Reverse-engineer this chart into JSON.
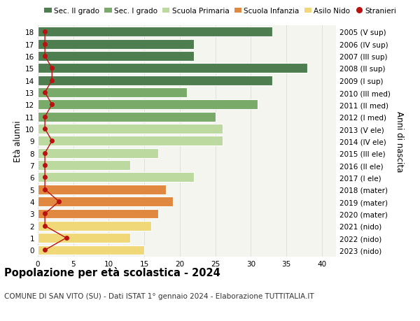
{
  "ages": [
    18,
    17,
    16,
    15,
    14,
    13,
    12,
    11,
    10,
    9,
    8,
    7,
    6,
    5,
    4,
    3,
    2,
    1,
    0
  ],
  "values": [
    33,
    22,
    22,
    38,
    33,
    21,
    31,
    25,
    26,
    26,
    17,
    13,
    22,
    18,
    19,
    17,
    16,
    13,
    15
  ],
  "stranieri": [
    1,
    1,
    1,
    2,
    2,
    1,
    2,
    1,
    1,
    2,
    1,
    1,
    1,
    1,
    3,
    1,
    1,
    4,
    1
  ],
  "right_labels": [
    "2005 (V sup)",
    "2006 (IV sup)",
    "2007 (III sup)",
    "2008 (II sup)",
    "2009 (I sup)",
    "2010 (III med)",
    "2011 (II med)",
    "2012 (I med)",
    "2013 (V ele)",
    "2014 (IV ele)",
    "2015 (III ele)",
    "2016 (II ele)",
    "2017 (I ele)",
    "2018 (mater)",
    "2019 (mater)",
    "2020 (mater)",
    "2021 (nido)",
    "2022 (nido)",
    "2023 (nido)"
  ],
  "bar_colors": [
    "#4e7e50",
    "#4e7e50",
    "#4e7e50",
    "#4e7e50",
    "#4e7e50",
    "#7aaa6a",
    "#7aaa6a",
    "#7aaa6a",
    "#bcd9a0",
    "#bcd9a0",
    "#bcd9a0",
    "#bcd9a0",
    "#bcd9a0",
    "#e08840",
    "#e08840",
    "#e08840",
    "#f0d878",
    "#f0d878",
    "#f0d878"
  ],
  "legend_colors": [
    "#4e7e50",
    "#7aaa6a",
    "#bcd9a0",
    "#e08840",
    "#f0d878",
    "#cc1111"
  ],
  "legend_labels": [
    "Sec. II grado",
    "Sec. I grado",
    "Scuola Primaria",
    "Scuola Infanzia",
    "Asilo Nido",
    "Stranieri"
  ],
  "ylabel": "Età alunni",
  "right_ylabel": "Anni di nascita",
  "title": "Popolazione per età scolastica - 2024",
  "subtitle": "COMUNE DI SAN VITO (SU) - Dati ISTAT 1° gennaio 2024 - Elaborazione TUTTITALIA.IT",
  "xlim": [
    0,
    42
  ],
  "background_color": "#ffffff",
  "plot_bg_color": "#f5f5f0",
  "grid_color": "#dddddd",
  "stranieri_color": "#bb1111",
  "stranieri_line_color": "#bb1111"
}
